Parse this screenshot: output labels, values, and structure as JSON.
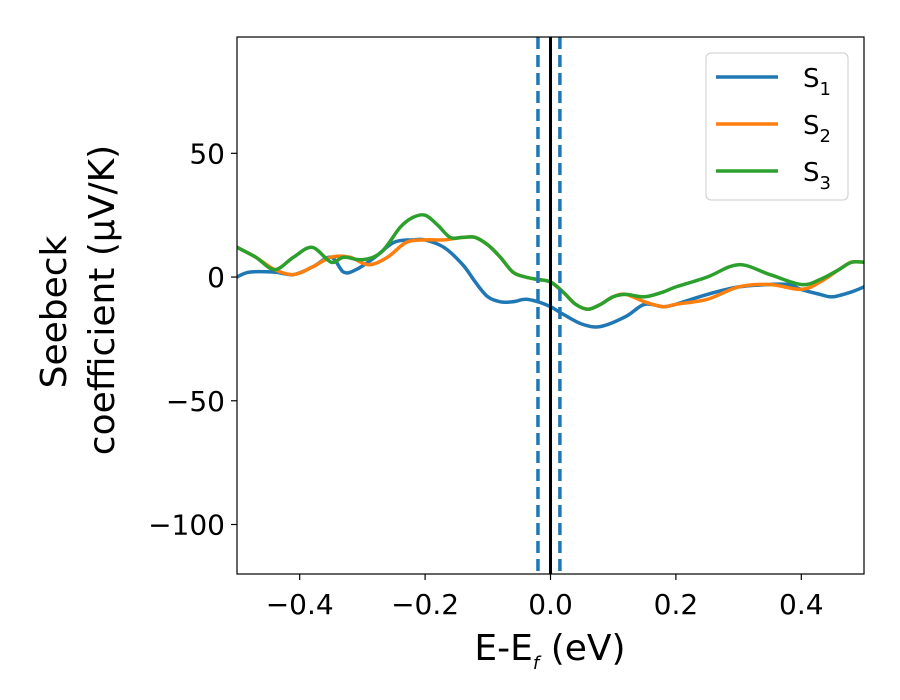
{
  "chart_data": {
    "type": "line",
    "xlabel_main": "E-E",
    "xlabel_sub": "f",
    "xlabel_unit": " (eV)",
    "ylabel_line1": "Seebeck",
    "ylabel_line2": "coefficient  (μV/K)",
    "xlim": [
      -0.5,
      0.5
    ],
    "ylim": [
      -120,
      97
    ],
    "xticks": [
      -0.4,
      -0.2,
      0.0,
      0.2,
      0.4
    ],
    "xtick_labels": [
      "−0.4",
      "−0.2",
      "0.0",
      "0.2",
      "0.4"
    ],
    "yticks": [
      50,
      0,
      -50,
      -100
    ],
    "ytick_labels": [
      "50",
      "0",
      "−50",
      "−100"
    ],
    "grid": false,
    "legend_position": "top-right",
    "vlines": [
      {
        "x": -0.02,
        "style": "dashed",
        "color": "#1f77b4"
      },
      {
        "x": 0.015,
        "style": "dashed",
        "color": "#1f77b4"
      },
      {
        "x": 0.0,
        "style": "solid",
        "color": "#000000"
      }
    ],
    "series": [
      {
        "name": "S",
        "sub": "1",
        "color": "#1f77b4",
        "x": [
          -0.5,
          -0.48,
          -0.44,
          -0.41,
          -0.38,
          -0.35,
          -0.33,
          -0.31,
          -0.28,
          -0.25,
          -0.22,
          -0.2,
          -0.17,
          -0.14,
          -0.12,
          -0.1,
          -0.08,
          -0.06,
          -0.04,
          -0.02,
          0.0,
          0.02,
          0.05,
          0.08,
          0.12,
          0.15,
          0.18,
          0.2,
          0.25,
          0.3,
          0.35,
          0.38,
          0.4,
          0.43,
          0.45,
          0.48,
          0.5
        ],
        "y": [
          0,
          2,
          2,
          1,
          4,
          8,
          2,
          3,
          8,
          14,
          15,
          15,
          12,
          5,
          -2,
          -8,
          -10,
          -10,
          -9,
          -10,
          -12,
          -15,
          -19,
          -20,
          -16,
          -11,
          -12,
          -11,
          -7,
          -4,
          -3,
          -3,
          -5,
          -7,
          -8,
          -6,
          -4
        ]
      },
      {
        "name": "S",
        "sub": "2",
        "color": "#ff7f0e",
        "x": [
          -0.5,
          -0.47,
          -0.44,
          -0.41,
          -0.38,
          -0.35,
          -0.32,
          -0.29,
          -0.26,
          -0.23,
          -0.2,
          -0.17,
          -0.14,
          -0.12,
          -0.1,
          -0.08,
          -0.06,
          -0.04,
          -0.02,
          0.0,
          0.02,
          0.04,
          0.06,
          0.08,
          0.1,
          0.12,
          0.15,
          0.18,
          0.2,
          0.25,
          0.3,
          0.35,
          0.4,
          0.43,
          0.46,
          0.48,
          0.5
        ],
        "y": [
          12,
          8,
          3,
          1,
          4,
          8,
          8,
          5,
          8,
          14,
          15,
          15,
          16,
          16,
          13,
          8,
          2,
          0,
          -1,
          -2,
          -6,
          -11,
          -13,
          -11,
          -8,
          -7,
          -10,
          -12,
          -11,
          -9,
          -4,
          -3,
          -5,
          -2,
          3,
          6,
          6
        ]
      },
      {
        "name": "S",
        "sub": "3",
        "color": "#2ca02c",
        "x": [
          -0.5,
          -0.47,
          -0.44,
          -0.41,
          -0.38,
          -0.35,
          -0.33,
          -0.3,
          -0.27,
          -0.24,
          -0.22,
          -0.2,
          -0.18,
          -0.16,
          -0.14,
          -0.12,
          -0.1,
          -0.08,
          -0.06,
          -0.04,
          -0.02,
          0.0,
          0.02,
          0.04,
          0.06,
          0.08,
          0.1,
          0.12,
          0.15,
          0.18,
          0.2,
          0.25,
          0.3,
          0.35,
          0.4,
          0.43,
          0.46,
          0.48,
          0.5
        ],
        "y": [
          12,
          8,
          3,
          8,
          12,
          6,
          8,
          7,
          10,
          20,
          24,
          25,
          21,
          16,
          16,
          16,
          13,
          8,
          2,
          0,
          -1,
          -2,
          -6,
          -11,
          -13,
          -11,
          -8,
          -7,
          -8,
          -6,
          -4,
          0,
          5,
          1,
          -3,
          -1,
          3,
          6,
          6
        ]
      }
    ]
  }
}
